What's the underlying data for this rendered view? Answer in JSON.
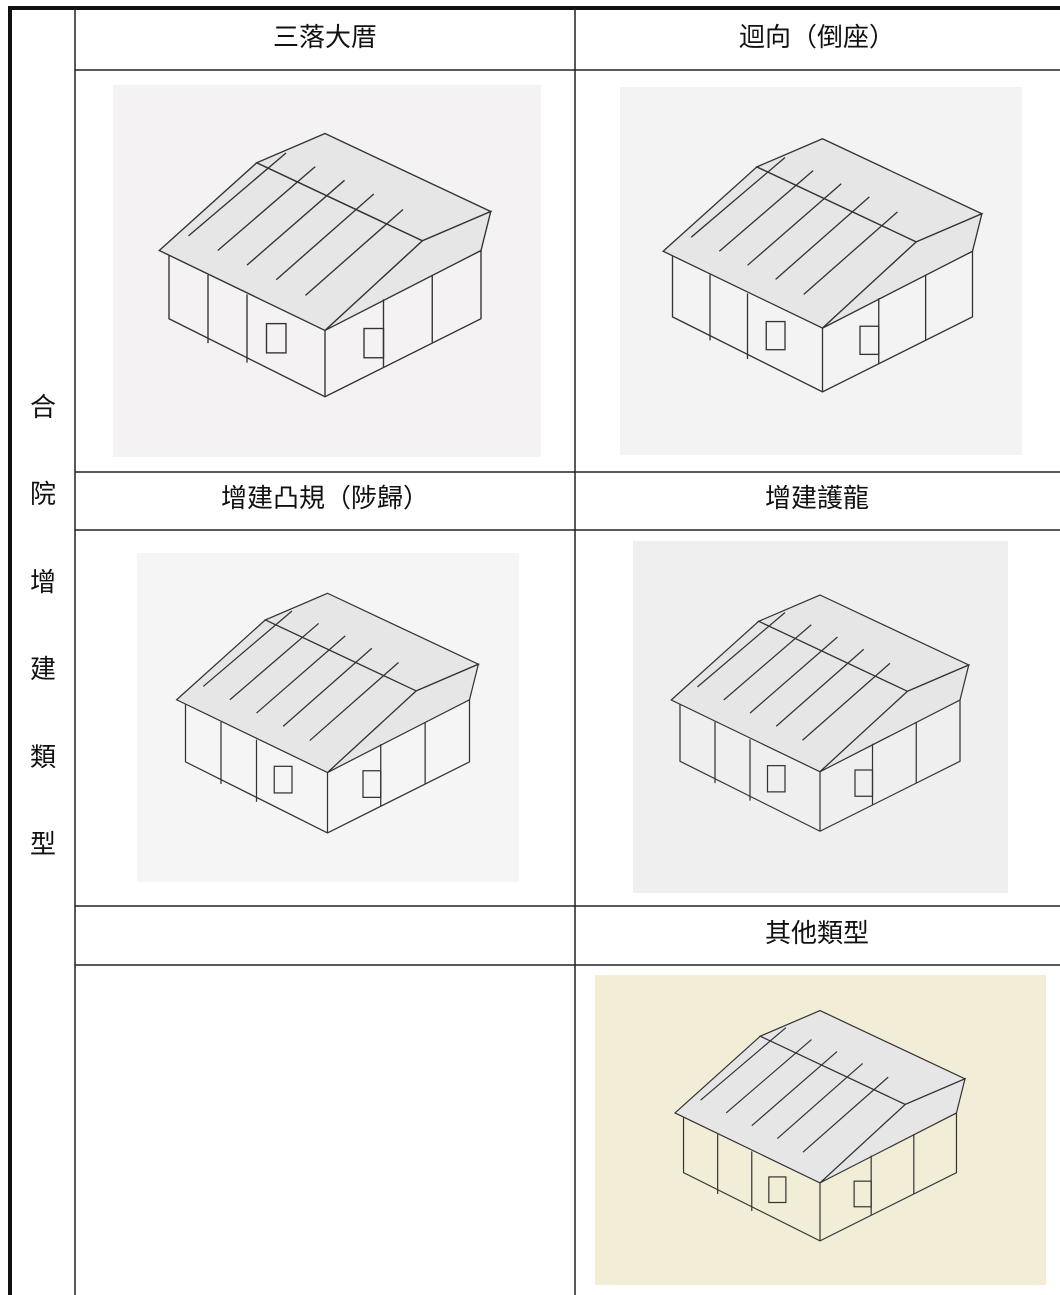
{
  "side_label": [
    "合",
    "院",
    "增",
    "建",
    "類",
    "型"
  ],
  "rows": [
    {
      "left": "三落大厝",
      "right": "迴向（倒座）"
    },
    {
      "left": "增建凸規（陟歸）",
      "right": "增建護龍"
    },
    {
      "right": "其他類型"
    }
  ]
}
